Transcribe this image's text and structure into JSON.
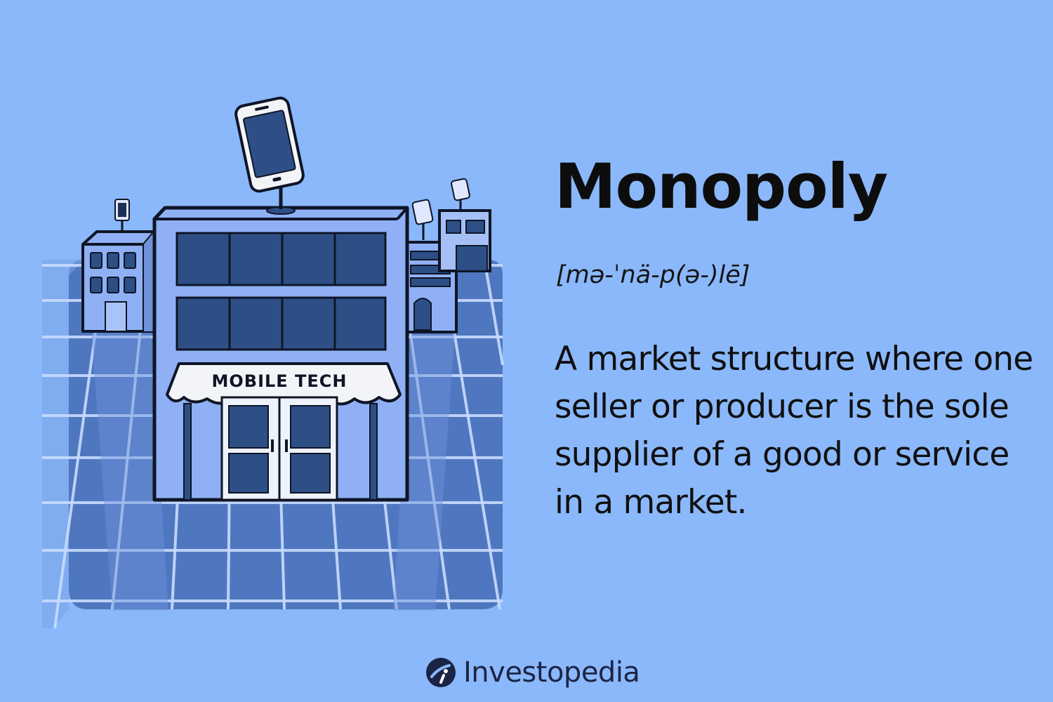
{
  "term": "Monopoly",
  "pronunciation": "[mə-ˈnä-p(ə-)lē]",
  "definition": "A market structure where one seller or producer is the sole supplier of a good or service in a market.",
  "illustration": {
    "awning_text": "MOBILE TECH"
  },
  "brand": {
    "name": "Investopedia",
    "icon": "investopedia-logo-icon"
  },
  "colors": {
    "background": "#8ab8fb",
    "ground": "#4f77bf",
    "building": "#8fb0f4",
    "windows": "#2d4f86",
    "outline": "#0f1526",
    "text": "#0d0d0d",
    "brand_text": "#1c2445"
  }
}
